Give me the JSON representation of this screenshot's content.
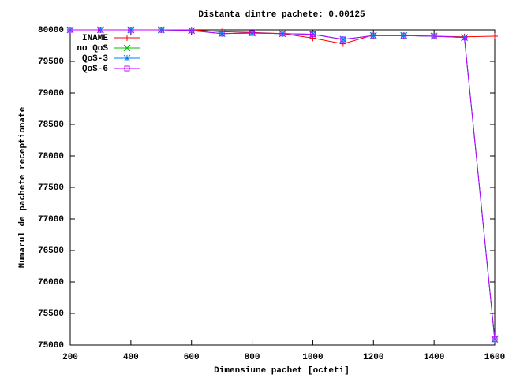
{
  "chart_data": {
    "type": "line",
    "title": "Distanta dintre pachete: 0.00125",
    "x_label": "Dimensiune pachet [octeti]",
    "y_label": "Numarul de pachete receptionate",
    "x": [
      200,
      300,
      400,
      500,
      600,
      700,
      800,
      900,
      1000,
      1100,
      1200,
      1300,
      1400,
      1500,
      1600
    ],
    "series": [
      {
        "name": "INAME",
        "color": "#ff0000",
        "marker": "plus",
        "values": [
          80000,
          80000,
          80000,
          80000,
          80000,
          79970,
          79960,
          79940,
          79870,
          79780,
          79920,
          79910,
          79900,
          79890,
          79900
        ]
      },
      {
        "name": "no QoS",
        "color": "#00c000",
        "marker": "cross",
        "values": [
          80000,
          80000,
          80000,
          80000,
          79990,
          79940,
          79950,
          79940,
          79930,
          79850,
          79910,
          79910,
          79900,
          79880,
          75090
        ]
      },
      {
        "name": "QoS-3",
        "color": "#0080ff",
        "marker": "star",
        "values": [
          80000,
          80000,
          80000,
          80000,
          79990,
          79940,
          79950,
          79940,
          79930,
          79850,
          79910,
          79910,
          79900,
          79880,
          75090
        ]
      },
      {
        "name": "QoS-6",
        "color": "#c000ff",
        "marker": "square",
        "values": [
          80000,
          80000,
          80000,
          80000,
          79990,
          79940,
          79950,
          79940,
          79930,
          79850,
          79910,
          79910,
          79900,
          79880,
          75090
        ]
      }
    ],
    "xlim": [
      200,
      1600
    ],
    "ylim": [
      75000,
      80000
    ],
    "xticks": [
      200,
      400,
      600,
      800,
      1000,
      1200,
      1400,
      1600
    ],
    "yticks": [
      75000,
      75500,
      76000,
      76500,
      77000,
      77500,
      78000,
      78500,
      79000,
      79500,
      80000
    ],
    "legend": "top-left"
  }
}
